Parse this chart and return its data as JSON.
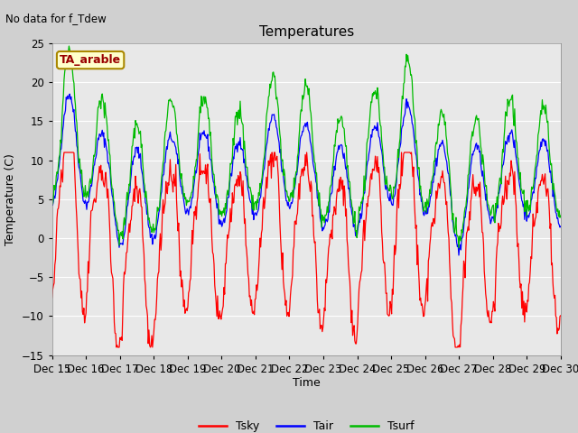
{
  "title": "Temperatures",
  "xlabel": "Time",
  "ylabel": "Temperature (C)",
  "ylim": [
    -15,
    25
  ],
  "top_left_text": "No data for f_Tdew",
  "station_label": "TA_arable",
  "legend_entries": [
    "Tsky",
    "Tair",
    "Tsurf"
  ],
  "tsky_color": "#ff0000",
  "tair_color": "#0000ff",
  "tsurf_color": "#00bb00",
  "fig_facecolor": "#d0d0d0",
  "plot_facecolor": "#e8e8e8",
  "grid_color": "#ffffff",
  "xtick_labels": [
    "Dec 15",
    "Dec 16",
    "Dec 17",
    "Dec 18",
    "Dec 19",
    "Dec 20",
    "Dec 21",
    "Dec 22",
    "Dec 23",
    "Dec 24",
    "Dec 25",
    "Dec 26",
    "Dec 27",
    "Dec 28",
    "Dec 29",
    "Dec 30"
  ],
  "yticks": [
    -15,
    -10,
    -5,
    0,
    5,
    10,
    15,
    20,
    25
  ],
  "n_points": 720,
  "seed": 42
}
